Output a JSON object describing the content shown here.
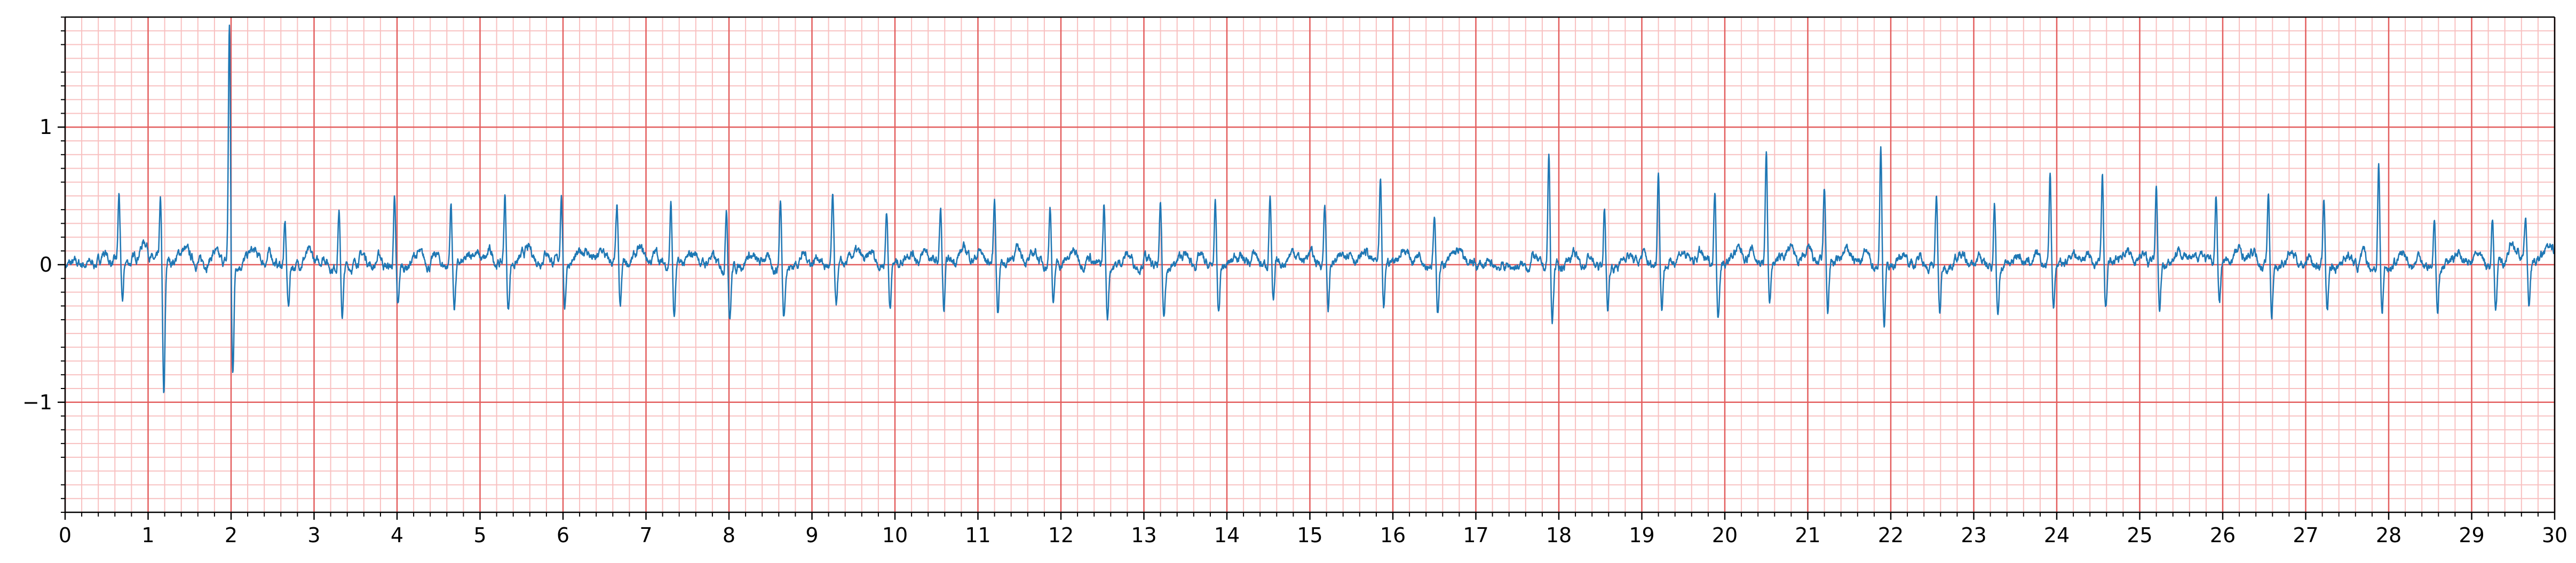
{
  "chart_data": {
    "type": "line",
    "title": "",
    "xlabel": "",
    "ylabel": "",
    "xlim": [
      0,
      30
    ],
    "ylim": [
      -1.8,
      1.8
    ],
    "x_ticks": [
      0,
      1,
      2,
      3,
      4,
      5,
      6,
      7,
      8,
      9,
      10,
      11,
      12,
      13,
      14,
      15,
      16,
      17,
      18,
      19,
      20,
      21,
      22,
      23,
      24,
      25,
      26,
      27,
      28,
      29,
      30
    ],
    "x_tick_labels": [
      "0",
      "1",
      "2",
      "3",
      "4",
      "5",
      "6",
      "7",
      "8",
      "9",
      "10",
      "11",
      "12",
      "13",
      "14",
      "15",
      "16",
      "17",
      "18",
      "19",
      "20",
      "21",
      "22",
      "23",
      "24",
      "25",
      "26",
      "27",
      "28",
      "29",
      "30"
    ],
    "y_ticks": [
      -1,
      0,
      1
    ],
    "y_tick_labels": [
      "−1",
      "0",
      "1"
    ],
    "grid": {
      "on": true,
      "style": "ecg paper",
      "major_x_step": 1,
      "minor_x_step": 0.2,
      "major_y_step": 1,
      "minor_y_step": 0.1,
      "major_color": "#e35d5d",
      "minor_color": "#f8c0c0"
    },
    "line_color": "#1f77b4",
    "series": [
      {
        "beat_times": [
          0.65,
          1.15,
          1.98,
          2.65,
          3.3,
          3.97,
          4.65,
          5.3,
          5.98,
          6.65,
          7.3,
          7.97,
          8.62,
          9.25,
          9.9,
          10.55,
          11.2,
          11.87,
          12.52,
          13.2,
          13.86,
          14.52,
          15.18,
          15.85,
          16.5,
          17.88,
          18.55,
          19.2,
          19.88,
          20.5,
          21.2,
          21.88,
          22.55,
          23.25,
          23.92,
          24.55,
          25.2,
          25.92,
          26.55,
          27.22,
          27.88,
          28.55,
          29.25,
          29.65
        ],
        "r_peak_values": [
          0.49,
          0.43,
          1.75,
          0.3,
          0.43,
          0.48,
          0.45,
          0.5,
          0.5,
          0.4,
          0.45,
          0.45,
          0.5,
          0.5,
          0.4,
          0.38,
          0.45,
          0.45,
          0.45,
          0.44,
          0.44,
          0.52,
          0.45,
          0.55,
          0.33,
          0.82,
          0.42,
          0.72,
          0.52,
          0.8,
          0.53,
          0.85,
          0.52,
          0.48,
          0.68,
          0.65,
          0.58,
          0.5,
          0.52,
          0.52,
          0.75,
          0.34,
          0.35,
          0.32
        ],
        "s_trough_values": [
          -0.3,
          -0.99,
          -0.8,
          -0.3,
          -0.35,
          -0.3,
          -0.3,
          -0.35,
          -0.32,
          -0.35,
          -0.38,
          -0.36,
          -0.35,
          -0.32,
          -0.3,
          -0.36,
          -0.35,
          -0.3,
          -0.37,
          -0.37,
          -0.35,
          -0.3,
          -0.35,
          -0.37,
          -0.35,
          -0.4,
          -0.3,
          -0.3,
          -0.36,
          -0.3,
          -0.35,
          -0.42,
          -0.35,
          -0.32,
          -0.3,
          -0.33,
          -0.33,
          -0.3,
          -0.35,
          -0.32,
          -0.33,
          -0.35,
          -0.33,
          -0.31
        ]
      }
    ]
  }
}
